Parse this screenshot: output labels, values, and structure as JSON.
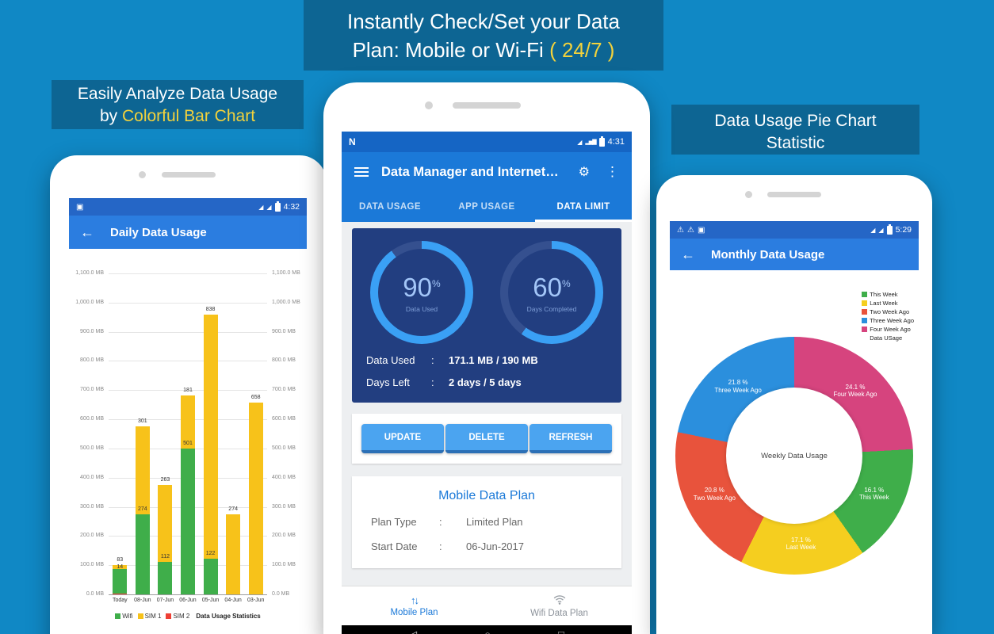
{
  "colors": {
    "background": "#1088c5",
    "header_block": "#0d6593",
    "accent_yellow": "#f2d23c",
    "appbar_blue": "#2b7de0",
    "mid_appbar_blue": "#1b79d8",
    "navy_card": "#223e80",
    "gauge_arc": "#3aa0f5",
    "button_blue": "#4ba4f0",
    "wifi_green": "#3fae4a",
    "sim1_yellow": "#f7c21a",
    "sim2_red": "#ee4035"
  },
  "headers": {
    "top_line1": "Instantly Check/Set your Data",
    "top_line2_pre": "Plan: Mobile or Wi-Fi ",
    "top_line2_highlight": "( 24/7 )",
    "left_line1": "Easily Analyze Data Usage",
    "left_line2_pre": "by ",
    "left_line2_highlight": "Colorful Bar Chart",
    "right_line1": "Data Usage Pie Chart",
    "right_line2": "Statistic"
  },
  "left_phone": {
    "status_time": "4:32",
    "back_arrow": "←",
    "appbar_title": "Daily Data Usage",
    "chart_data": {
      "type": "bar",
      "stacked": true,
      "categories": [
        "Today",
        "08-Jun",
        "07-Jun",
        "06-Jun",
        "05-Jun",
        "04-Jun",
        "03-Jun"
      ],
      "series": [
        {
          "name": "Wifi",
          "color": "#3fae4a",
          "values": [
            83,
            274,
            112,
            501,
            122,
            0,
            0
          ]
        },
        {
          "name": "SIM 1",
          "color": "#f7c21a",
          "values": [
            14,
            301,
            263,
            181,
            838,
            274,
            658
          ]
        },
        {
          "name": "SIM 2",
          "color": "#ee4035",
          "values": [
            4,
            0,
            0,
            0,
            0,
            0,
            0
          ]
        }
      ],
      "bar_labels": [
        [
          "83",
          "14"
        ],
        [
          "301",
          "274"
        ],
        [
          "263",
          "112"
        ],
        [
          "181",
          "501"
        ],
        [
          "838",
          "122"
        ],
        [
          "274"
        ],
        [
          "658"
        ]
      ],
      "y_ticks": [
        "1,100.0 MB",
        "1,000.0 MB",
        "900.0 MB",
        "800.0 MB",
        "700.0 MB",
        "600.0 MB",
        "500.0 MB",
        "400.0 MB",
        "300.0 MB",
        "200.0 MB",
        "100.0 MB",
        "0.0 MB"
      ],
      "ylim": [
        0,
        1100
      ],
      "grid": true,
      "footer": "Data Usage Statistics"
    }
  },
  "middle_phone": {
    "status_left": "N",
    "status_time": "4:31",
    "appbar_title": "Data Manager and Internet…",
    "tabs": [
      {
        "label": "DATA USAGE",
        "selected": false
      },
      {
        "label": "APP USAGE",
        "selected": false
      },
      {
        "label": "DATA LIMIT",
        "selected": true
      }
    ],
    "gauges": [
      {
        "percent": 90,
        "value": "90",
        "unit": "%",
        "label": "Data Used"
      },
      {
        "percent": 60,
        "value": "60",
        "unit": "%",
        "label": "Days Completed"
      }
    ],
    "stats": [
      {
        "label": "Data Used",
        "sep": ":",
        "value": "171.1 MB / 190 MB"
      },
      {
        "label": "Days Left",
        "sep": ":",
        "value": "2 days / 5 days"
      }
    ],
    "buttons": [
      "UPDATE",
      "DELETE",
      "REFRESH"
    ],
    "plan_card": {
      "title": "Mobile Data Plan",
      "rows": [
        {
          "label": "Plan Type",
          "sep": ":",
          "value": "Limited Plan"
        },
        {
          "label": "Start Date",
          "sep": ":",
          "value": "06-Jun-2017"
        }
      ]
    },
    "bottom_nav": [
      {
        "label": "Mobile Plan",
        "active": true
      },
      {
        "label": "Wifi Data Plan",
        "active": false
      }
    ]
  },
  "right_phone": {
    "status_time": "5:29",
    "back_arrow": "←",
    "appbar_title": "Monthly Data Usage",
    "center_label": "Weekly Data Usage",
    "chart_data": {
      "type": "pie",
      "donut": true,
      "start_angle_deg": 0,
      "slices": [
        {
          "name": "Four Week Ago",
          "value": 24.1,
          "pct_label": "24.1 %",
          "color": "#d6447e"
        },
        {
          "name": "This Week",
          "value": 16.1,
          "pct_label": "16.1 %",
          "color": "#3fae4a"
        },
        {
          "name": "Last Week",
          "value": 17.1,
          "pct_label": "17.1 %",
          "color": "#f5ce1f"
        },
        {
          "name": "Two Week Ago",
          "value": 20.8,
          "pct_label": "20.8 %",
          "color": "#e8533c"
        },
        {
          "name": "Three Week Ago",
          "value": 21.8,
          "pct_label": "21.8 %",
          "color": "#2b8fdd"
        }
      ],
      "legend": [
        {
          "label": "This Week",
          "color": "#3fae4a"
        },
        {
          "label": "Last Week",
          "color": "#f5ce1f"
        },
        {
          "label": "Two Week Ago",
          "color": "#e8533c"
        },
        {
          "label": "Three Week Ago",
          "color": "#2b8fdd"
        },
        {
          "label": "Four Week Ago",
          "color": "#d6447e"
        },
        {
          "label": "Data USage",
          "color": ""
        }
      ]
    }
  }
}
